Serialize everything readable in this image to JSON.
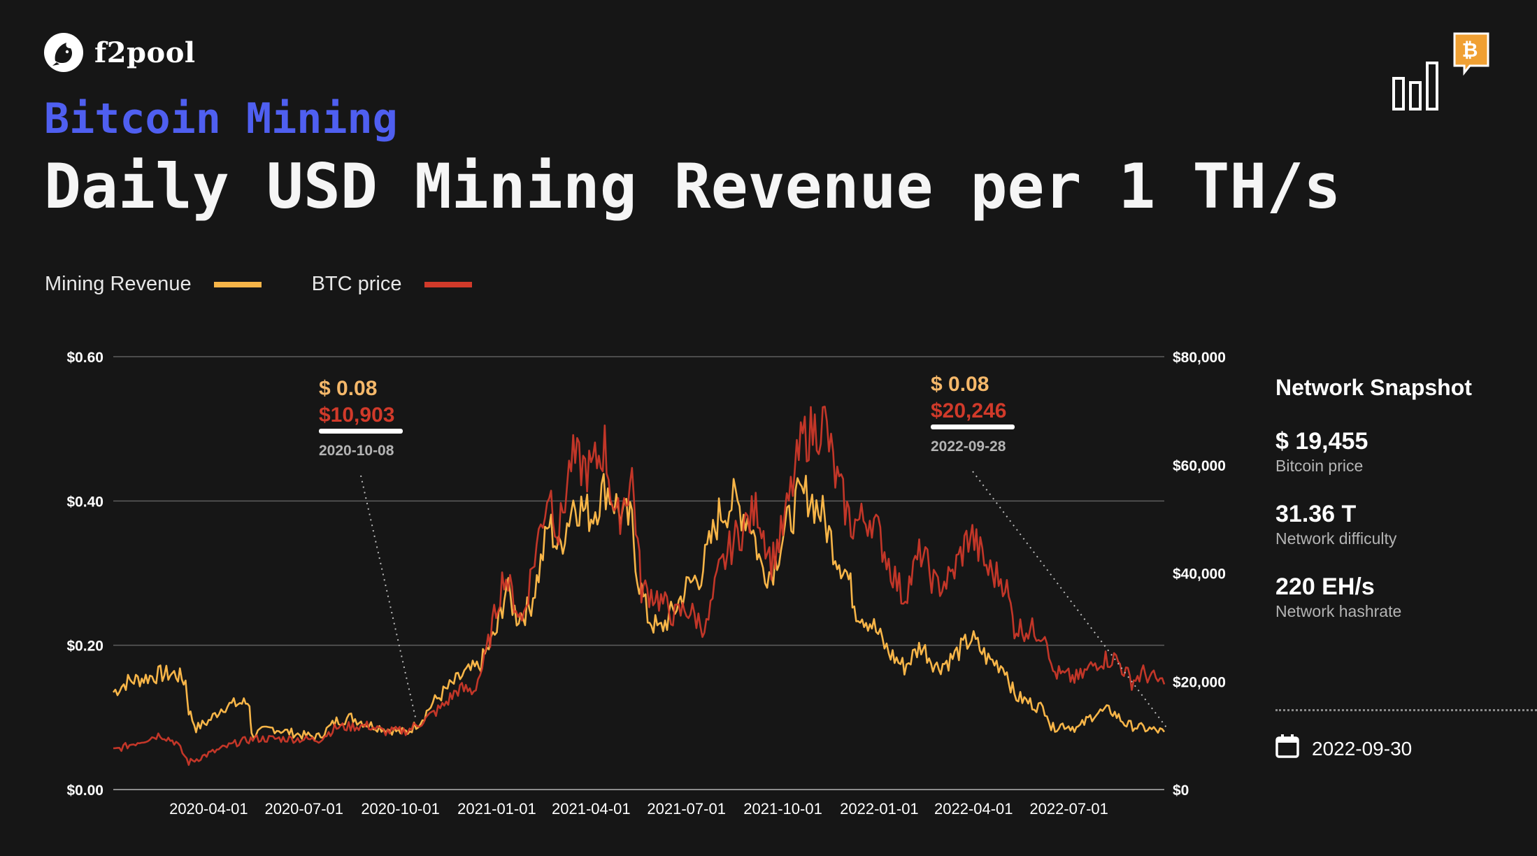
{
  "brand": {
    "name": "f2pool",
    "logo_icon": "f2pool-fish-icon",
    "badge_icon": "bitcoin-bar-chart-icon"
  },
  "header": {
    "subtitle": "Bitcoin Mining",
    "title": "Daily USD Mining Revenue per 1 TH/s"
  },
  "legend": [
    {
      "label": "Mining Revenue",
      "color": "#f7b548"
    },
    {
      "label": "BTC price",
      "color": "#d13a2a"
    }
  ],
  "chart_data": {
    "type": "line",
    "x_ticks": [
      "2020-04-01",
      "2020-07-01",
      "2020-10-01",
      "2021-01-01",
      "2021-04-01",
      "2021-07-01",
      "2021-10-01",
      "2022-01-01",
      "2022-04-01",
      "2022-07-01"
    ],
    "x_range": [
      "2020-01-01",
      "2022-09-30"
    ],
    "y_left": {
      "range": [
        0,
        0.6
      ],
      "ticks": [
        "$0.00",
        "$0.20",
        "$0.40",
        "$0.60"
      ]
    },
    "y_right": {
      "range": [
        0,
        80000
      ],
      "ticks": [
        "$0",
        "$20,000",
        "$40,000",
        "$60,000",
        "$80,000"
      ]
    },
    "grid": true,
    "series": [
      {
        "name": "Mining Revenue",
        "axis": "left",
        "color": "#f7b548",
        "points": [
          [
            "2020-01-01",
            0.135
          ],
          [
            "2020-01-15",
            0.15
          ],
          [
            "2020-02-01",
            0.155
          ],
          [
            "2020-02-15",
            0.16
          ],
          [
            "2020-03-01",
            0.16
          ],
          [
            "2020-03-10",
            0.15
          ],
          [
            "2020-03-13",
            0.11
          ],
          [
            "2020-03-20",
            0.085
          ],
          [
            "2020-04-01",
            0.095
          ],
          [
            "2020-04-15",
            0.115
          ],
          [
            "2020-05-01",
            0.12
          ],
          [
            "2020-05-10",
            0.12
          ],
          [
            "2020-05-12",
            0.075
          ],
          [
            "2020-05-20",
            0.08
          ],
          [
            "2020-06-01",
            0.085
          ],
          [
            "2020-06-15",
            0.08
          ],
          [
            "2020-07-01",
            0.075
          ],
          [
            "2020-07-15",
            0.073
          ],
          [
            "2020-08-01",
            0.095
          ],
          [
            "2020-08-15",
            0.1
          ],
          [
            "2020-09-01",
            0.09
          ],
          [
            "2020-09-15",
            0.085
          ],
          [
            "2020-10-01",
            0.08
          ],
          [
            "2020-10-08",
            0.08
          ],
          [
            "2020-10-20",
            0.095
          ],
          [
            "2020-11-01",
            0.12
          ],
          [
            "2020-11-15",
            0.14
          ],
          [
            "2020-12-01",
            0.16
          ],
          [
            "2020-12-15",
            0.17
          ],
          [
            "2021-01-01",
            0.22
          ],
          [
            "2021-01-10",
            0.28
          ],
          [
            "2021-01-20",
            0.24
          ],
          [
            "2021-02-01",
            0.25
          ],
          [
            "2021-02-10",
            0.3
          ],
          [
            "2021-02-20",
            0.37
          ],
          [
            "2021-03-01",
            0.33
          ],
          [
            "2021-03-15",
            0.4
          ],
          [
            "2021-04-01",
            0.38
          ],
          [
            "2021-04-15",
            0.42
          ],
          [
            "2021-05-01",
            0.38
          ],
          [
            "2021-05-10",
            0.37
          ],
          [
            "2021-05-15",
            0.3
          ],
          [
            "2021-05-25",
            0.24
          ],
          [
            "2021-06-05",
            0.22
          ],
          [
            "2021-06-20",
            0.25
          ],
          [
            "2021-07-01",
            0.28
          ],
          [
            "2021-07-15",
            0.3
          ],
          [
            "2021-08-01",
            0.38
          ],
          [
            "2021-08-15",
            0.4
          ],
          [
            "2021-09-01",
            0.37
          ],
          [
            "2021-09-10",
            0.31
          ],
          [
            "2021-09-20",
            0.3
          ],
          [
            "2021-10-01",
            0.35
          ],
          [
            "2021-10-15",
            0.4
          ],
          [
            "2021-10-25",
            0.41
          ],
          [
            "2021-11-08",
            0.38
          ],
          [
            "2021-11-20",
            0.33
          ],
          [
            "2021-12-01",
            0.3
          ],
          [
            "2021-12-10",
            0.25
          ],
          [
            "2021-12-25",
            0.23
          ],
          [
            "2022-01-10",
            0.19
          ],
          [
            "2022-01-25",
            0.17
          ],
          [
            "2022-02-10",
            0.2
          ],
          [
            "2022-02-25",
            0.17
          ],
          [
            "2022-03-10",
            0.18
          ],
          [
            "2022-03-30",
            0.21
          ],
          [
            "2022-04-15",
            0.18
          ],
          [
            "2022-05-01",
            0.17
          ],
          [
            "2022-05-10",
            0.13
          ],
          [
            "2022-05-25",
            0.12
          ],
          [
            "2022-06-10",
            0.11
          ],
          [
            "2022-06-14",
            0.085
          ],
          [
            "2022-06-25",
            0.09
          ],
          [
            "2022-07-10",
            0.085
          ],
          [
            "2022-07-25",
            0.105
          ],
          [
            "2022-08-10",
            0.11
          ],
          [
            "2022-08-25",
            0.09
          ],
          [
            "2022-09-10",
            0.085
          ],
          [
            "2022-09-30",
            0.08
          ]
        ]
      },
      {
        "name": "BTC price",
        "axis": "right",
        "color": "#d13a2a",
        "points": [
          [
            "2020-01-01",
            7200
          ],
          [
            "2020-02-01",
            9300
          ],
          [
            "2020-02-15",
            10200
          ],
          [
            "2020-03-01",
            8700
          ],
          [
            "2020-03-13",
            5000
          ],
          [
            "2020-04-01",
            6600
          ],
          [
            "2020-04-30",
            8800
          ],
          [
            "2020-05-15",
            9400
          ],
          [
            "2020-06-15",
            9400
          ],
          [
            "2020-07-15",
            9200
          ],
          [
            "2020-08-01",
            11500
          ],
          [
            "2020-09-01",
            11800
          ],
          [
            "2020-09-15",
            10700
          ],
          [
            "2020-10-08",
            10903
          ],
          [
            "2020-10-25",
            13000
          ],
          [
            "2020-11-10",
            15300
          ],
          [
            "2020-11-25",
            18500
          ],
          [
            "2020-12-10",
            18300
          ],
          [
            "2020-12-20",
            23500
          ],
          [
            "2021-01-08",
            40000
          ],
          [
            "2021-01-25",
            31000
          ],
          [
            "2021-02-08",
            45000
          ],
          [
            "2021-02-20",
            56000
          ],
          [
            "2021-03-01",
            47000
          ],
          [
            "2021-03-13",
            61000
          ],
          [
            "2021-04-01",
            58800
          ],
          [
            "2021-04-14",
            63500
          ],
          [
            "2021-04-25",
            49000
          ],
          [
            "2021-05-10",
            58000
          ],
          [
            "2021-05-19",
            37000
          ],
          [
            "2021-06-01",
            36000
          ],
          [
            "2021-06-20",
            32000
          ],
          [
            "2021-07-01",
            33500
          ],
          [
            "2021-07-20",
            29800
          ],
          [
            "2021-08-01",
            40000
          ],
          [
            "2021-08-15",
            46000
          ],
          [
            "2021-09-07",
            52000
          ],
          [
            "2021-09-20",
            42000
          ],
          [
            "2021-10-01",
            48000
          ],
          [
            "2021-10-20",
            65000
          ],
          [
            "2021-11-10",
            68000
          ],
          [
            "2021-11-20",
            58000
          ],
          [
            "2021-12-05",
            49000
          ],
          [
            "2021-12-25",
            50500
          ],
          [
            "2022-01-10",
            42000
          ],
          [
            "2022-01-24",
            35500
          ],
          [
            "2022-02-10",
            44000
          ],
          [
            "2022-02-24",
            37500
          ],
          [
            "2022-03-10",
            39000
          ],
          [
            "2022-03-29",
            47500
          ],
          [
            "2022-04-15",
            40500
          ],
          [
            "2022-05-01",
            38500
          ],
          [
            "2022-05-10",
            30000
          ],
          [
            "2022-05-25",
            29500
          ],
          [
            "2022-06-10",
            29000
          ],
          [
            "2022-06-14",
            22000
          ],
          [
            "2022-06-25",
            21000
          ],
          [
            "2022-07-10",
            20500
          ],
          [
            "2022-07-30",
            24000
          ],
          [
            "2022-08-15",
            24200
          ],
          [
            "2022-08-30",
            20000
          ],
          [
            "2022-09-10",
            21500
          ],
          [
            "2022-09-30",
            19455
          ]
        ]
      }
    ],
    "annotations": [
      {
        "date": "2020-10-08",
        "revenue": "$ 0.08",
        "price": "$10,903"
      },
      {
        "date": "2022-09-28",
        "revenue": "$ 0.08",
        "price": "$20,246"
      }
    ]
  },
  "snapshot": {
    "title": "Network Snapshot",
    "items": [
      {
        "value": "$ 19,455",
        "label": "Bitcoin price"
      },
      {
        "value": "31.36 T",
        "label": "Network difficulty"
      },
      {
        "value": "220 EH/s",
        "label": "Network hashrate"
      }
    ],
    "date": "2022-09-30",
    "date_icon": "calendar-icon"
  }
}
